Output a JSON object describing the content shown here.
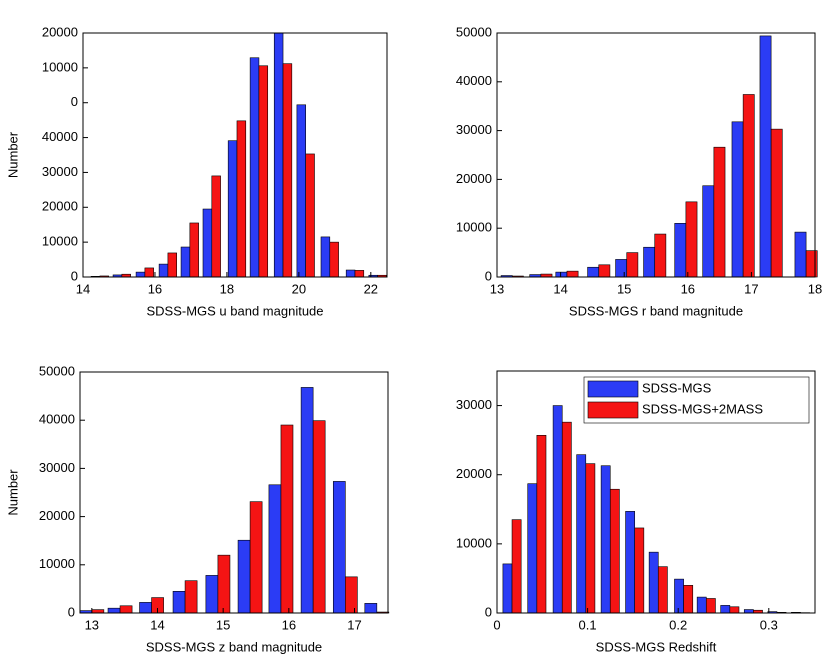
{
  "chart_data": [
    {
      "type": "bar",
      "xlabel": "SDSS-MGS u band magnitude",
      "ylabel": "Number",
      "x": [
        14.47,
        15.08,
        15.72,
        16.36,
        16.97,
        17.58,
        18.28,
        18.89,
        19.56,
        20.19,
        20.86,
        21.56,
        22.19
      ],
      "series": [
        {
          "color": "#2b3cf5",
          "values": [
            200,
            600,
            1400,
            3700,
            8600,
            19500,
            39100,
            62900,
            70000,
            49400,
            11500,
            2000,
            500
          ]
        },
        {
          "color": "#f51414",
          "values": [
            300,
            800,
            2600,
            6900,
            15500,
            29000,
            44800,
            60600,
            61200,
            35300,
            10000,
            1900,
            500
          ]
        }
      ],
      "xlim": [
        14,
        22.45
      ],
      "xticks": [
        14,
        16,
        18,
        20,
        22
      ],
      "ylim": [
        0,
        70000
      ],
      "yticks": [
        0,
        10000,
        20000,
        30000,
        40000,
        {
          "value": 50000,
          "label": "0"
        },
        {
          "value": 60000,
          "label": "10000"
        },
        {
          "value": 70000,
          "label": "20000"
        }
      ]
    },
    {
      "type": "bar",
      "xlabel": "SDSS-MGS r band magnitude",
      "x": [
        13.24,
        13.69,
        14.1,
        14.6,
        15.04,
        15.48,
        15.97,
        16.41,
        16.87,
        17.31,
        17.86
      ],
      "series": [
        {
          "color": "#2b3cf5",
          "values": [
            300,
            500,
            1000,
            2000,
            3600,
            6100,
            11000,
            18700,
            31800,
            49400,
            9200
          ]
        },
        {
          "color": "#f51414",
          "values": [
            200,
            600,
            1200,
            2500,
            5000,
            8800,
            15400,
            26600,
            37400,
            30300,
            5400
          ]
        }
      ],
      "xlim": [
        13,
        18
      ],
      "xticks": [
        13,
        14,
        15,
        16,
        17,
        18
      ],
      "ylim": [
        0,
        50000
      ],
      "yticks": [
        0,
        10000,
        20000,
        30000,
        40000,
        50000
      ]
    },
    {
      "type": "bar",
      "xlabel": "SDSS-MGS z band magnitude",
      "ylabel": "Number",
      "x": [
        13.0,
        13.43,
        13.91,
        14.42,
        14.92,
        15.41,
        15.88,
        16.37,
        16.86,
        17.34
      ],
      "series": [
        {
          "color": "#2b3cf5",
          "values": [
            500,
            1000,
            2200,
            4500,
            7800,
            15100,
            26600,
            46800,
            27300,
            2000
          ]
        },
        {
          "color": "#f51414",
          "values": [
            700,
            1500,
            3200,
            6700,
            12000,
            23100,
            39000,
            39900,
            7500,
            200
          ]
        }
      ],
      "xlim": [
        12.82,
        17.51
      ],
      "xticks": [
        13,
        14,
        15,
        16,
        17
      ],
      "ylim": [
        0,
        50000
      ],
      "yticks": [
        0,
        10000,
        20000,
        30000,
        40000,
        50000
      ]
    },
    {
      "type": "bar",
      "xlabel": "SDSS-MGS Redshift",
      "legend": "upper right",
      "x": [
        0.0166,
        0.044,
        0.072,
        0.098,
        0.125,
        0.152,
        0.178,
        0.206,
        0.231,
        0.257,
        0.283,
        0.309,
        0.335
      ],
      "series": [
        {
          "name": "SDSS-MGS",
          "color": "#2b3cf5",
          "values": [
            7100,
            18700,
            30000,
            22900,
            21300,
            14700,
            8800,
            4900,
            2300,
            1100,
            500,
            200,
            100
          ]
        },
        {
          "name": "SDSS-MGS+2MASS",
          "color": "#f51414",
          "values": [
            13500,
            25700,
            27600,
            21600,
            17900,
            12300,
            6700,
            4000,
            2100,
            900,
            400,
            100,
            50
          ]
        }
      ],
      "xlim": [
        0,
        0.351
      ],
      "xticks": [
        0,
        0.1,
        0.2,
        0.3
      ],
      "ylim": [
        0,
        35000
      ],
      "yticks": [
        0,
        10000,
        20000,
        30000
      ]
    }
  ]
}
